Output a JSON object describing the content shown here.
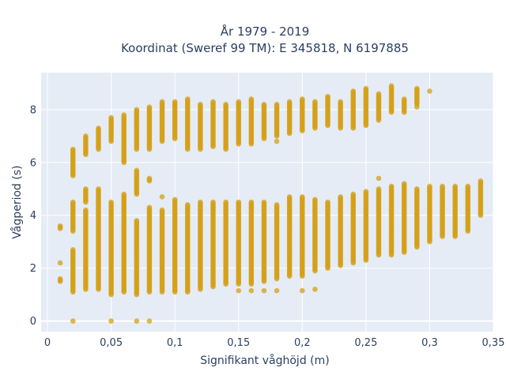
{
  "chart_data": {
    "type": "scatter",
    "title": "År 1979 - 2019",
    "subtitle": "Koordinat (Sweref 99 TM): E 345818, N 6197885",
    "xlabel": "Signifikant våghöjd (m)",
    "ylabel": "Vågperiod (s)",
    "xlim": [
      -0.005,
      0.35
    ],
    "ylim": [
      -0.4,
      9.4
    ],
    "x_ticks": [
      0,
      0.05,
      0.1,
      0.15,
      0.2,
      0.25,
      0.3,
      0.35
    ],
    "x_tick_labels": [
      "0",
      "0,05",
      "0,1",
      "0,15",
      "0,2",
      "0,25",
      "0,3",
      "0,35"
    ],
    "y_ticks": [
      0,
      2,
      4,
      6,
      8
    ],
    "y_tick_labels": [
      "0",
      "2",
      "4",
      "6",
      "8"
    ],
    "grid": true,
    "marker_color": "#d4a017",
    "background_color": "#e5ecf6",
    "series": [
      {
        "description": "vertical point columns per wave height; each segment is [x, y_min, y_max]",
        "segments": [
          [
            0.01,
            1.5,
            1.6
          ],
          [
            0.01,
            2.2,
            2.2
          ],
          [
            0.01,
            3.5,
            3.6
          ],
          [
            0.02,
            0,
            0
          ],
          [
            0.02,
            1.1,
            2.7
          ],
          [
            0.02,
            3.4,
            4.5
          ],
          [
            0.02,
            5.5,
            6.5
          ],
          [
            0.03,
            1.2,
            4.2
          ],
          [
            0.03,
            4.5,
            5.0
          ],
          [
            0.03,
            6.3,
            7.0
          ],
          [
            0.04,
            1.2,
            5.0
          ],
          [
            0.04,
            6.5,
            7.3
          ],
          [
            0.05,
            0,
            0
          ],
          [
            0.05,
            1.0,
            4.5
          ],
          [
            0.05,
            6.8,
            7.7
          ],
          [
            0.06,
            1.1,
            4.8
          ],
          [
            0.06,
            6.0,
            7.8
          ],
          [
            0.07,
            0,
            0
          ],
          [
            0.07,
            1.0,
            3.8
          ],
          [
            0.07,
            6.5,
            8.0
          ],
          [
            0.07,
            4.8,
            5.7
          ],
          [
            0.08,
            0,
            0
          ],
          [
            0.08,
            1.1,
            4.3
          ],
          [
            0.08,
            6.5,
            8.1
          ],
          [
            0.08,
            5.3,
            5.4
          ],
          [
            0.09,
            1.1,
            4.2
          ],
          [
            0.09,
            6.8,
            8.3
          ],
          [
            0.1,
            1.1,
            4.6
          ],
          [
            0.1,
            6.9,
            8.3
          ],
          [
            0.11,
            1.1,
            4.4
          ],
          [
            0.11,
            6.5,
            8.4
          ],
          [
            0.12,
            1.2,
            4.5
          ],
          [
            0.12,
            6.5,
            8.2
          ],
          [
            0.13,
            1.3,
            4.5
          ],
          [
            0.13,
            6.6,
            8.3
          ],
          [
            0.14,
            1.4,
            4.5
          ],
          [
            0.14,
            6.5,
            8.2
          ],
          [
            0.15,
            1.4,
            4.5
          ],
          [
            0.15,
            6.7,
            8.3
          ],
          [
            0.16,
            1.4,
            4.5
          ],
          [
            0.16,
            6.7,
            8.4
          ],
          [
            0.17,
            1.5,
            4.5
          ],
          [
            0.17,
            6.9,
            8.2
          ],
          [
            0.18,
            1.6,
            4.4
          ],
          [
            0.18,
            7.0,
            8.2
          ],
          [
            0.19,
            1.7,
            4.7
          ],
          [
            0.19,
            7.1,
            8.3
          ],
          [
            0.2,
            1.7,
            4.7
          ],
          [
            0.2,
            7.2,
            8.4
          ],
          [
            0.21,
            1.9,
            4.6
          ],
          [
            0.21,
            7.3,
            8.3
          ],
          [
            0.22,
            2.0,
            4.5
          ],
          [
            0.22,
            7.4,
            8.5
          ],
          [
            0.23,
            2.1,
            4.7
          ],
          [
            0.23,
            7.3,
            8.3
          ],
          [
            0.24,
            2.2,
            4.8
          ],
          [
            0.24,
            7.3,
            8.7
          ],
          [
            0.25,
            2.3,
            4.9
          ],
          [
            0.25,
            7.4,
            8.8
          ],
          [
            0.26,
            2.5,
            5.0
          ],
          [
            0.26,
            7.6,
            8.6
          ],
          [
            0.27,
            2.5,
            5.1
          ],
          [
            0.27,
            7.9,
            8.9
          ],
          [
            0.28,
            2.6,
            5.2
          ],
          [
            0.28,
            7.9,
            8.4
          ],
          [
            0.29,
            2.8,
            5.0
          ],
          [
            0.29,
            8.2,
            8.8
          ],
          [
            0.3,
            3.0,
            5.1
          ],
          [
            0.3,
            8.7,
            8.7
          ],
          [
            0.31,
            3.2,
            5.1
          ],
          [
            0.32,
            3.2,
            5.1
          ],
          [
            0.33,
            3.4,
            5.1
          ],
          [
            0.34,
            4.0,
            5.3
          ]
        ],
        "isolated_points": [
          [
            0.15,
            1.15
          ],
          [
            0.16,
            1.15
          ],
          [
            0.17,
            1.15
          ],
          [
            0.18,
            1.15
          ],
          [
            0.2,
            1.15
          ],
          [
            0.21,
            1.2
          ],
          [
            0.18,
            6.8
          ],
          [
            0.27,
            8.0
          ],
          [
            0.29,
            8.1
          ],
          [
            0.26,
            5.4
          ],
          [
            0.09,
            4.7
          ]
        ]
      }
    ]
  }
}
